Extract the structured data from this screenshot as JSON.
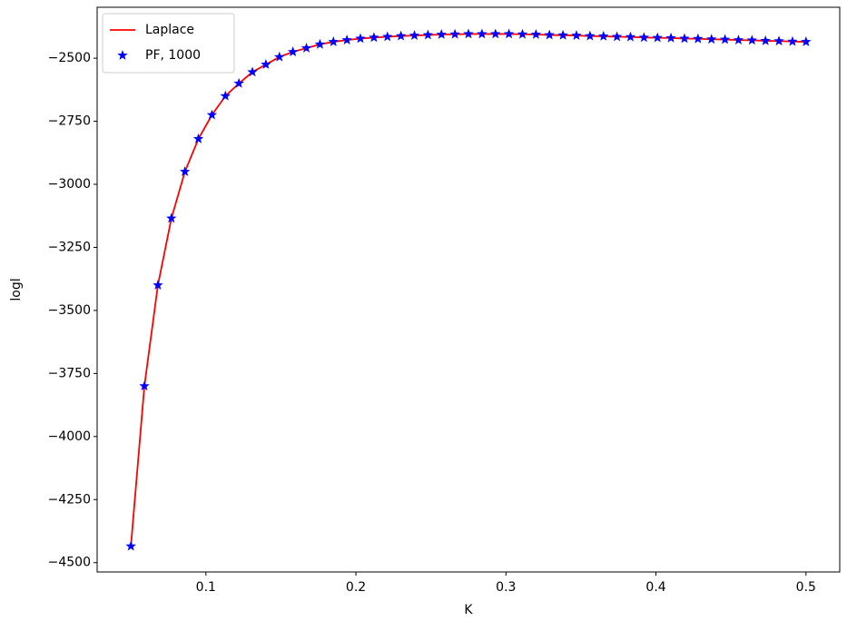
{
  "chart_data": {
    "type": "line",
    "xlabel": "K",
    "ylabel": "logl",
    "x": [
      0.05,
      0.059,
      0.068,
      0.077,
      0.086,
      0.095,
      0.104,
      0.113,
      0.122,
      0.131,
      0.14,
      0.149,
      0.158,
      0.167,
      0.176,
      0.185,
      0.194,
      0.203,
      0.212,
      0.221,
      0.23,
      0.239,
      0.248,
      0.257,
      0.266,
      0.275,
      0.284,
      0.293,
      0.302,
      0.311,
      0.32,
      0.329,
      0.338,
      0.347,
      0.356,
      0.365,
      0.374,
      0.383,
      0.392,
      0.401,
      0.41,
      0.419,
      0.428,
      0.437,
      0.446,
      0.455,
      0.464,
      0.473,
      0.482,
      0.491,
      0.5
    ],
    "series": [
      {
        "name": "Laplace",
        "color": "#ff0000",
        "style": "line",
        "values": [
          -4435,
          -3800,
          -3400,
          -3135,
          -2950,
          -2820,
          -2725,
          -2650,
          -2600,
          -2555,
          -2525,
          -2495,
          -2475,
          -2460,
          -2445,
          -2435,
          -2428,
          -2422,
          -2418,
          -2415,
          -2412,
          -2410,
          -2408,
          -2406,
          -2405,
          -2404,
          -2404,
          -2404,
          -2404,
          -2405,
          -2406,
          -2408,
          -2409,
          -2410,
          -2412,
          -2413,
          -2415,
          -2416,
          -2418,
          -2419,
          -2420,
          -2422,
          -2423,
          -2425,
          -2426,
          -2428,
          -2429,
          -2431,
          -2432,
          -2434,
          -2435
        ]
      },
      {
        "name": "PF, 1000",
        "color": "#0000ff",
        "style": "star",
        "values": [
          -4435,
          -3800,
          -3400,
          -3135,
          -2950,
          -2820,
          -2725,
          -2650,
          -2600,
          -2555,
          -2525,
          -2495,
          -2475,
          -2460,
          -2445,
          -2435,
          -2428,
          -2422,
          -2418,
          -2415,
          -2412,
          -2410,
          -2408,
          -2406,
          -2405,
          -2404,
          -2404,
          -2404,
          -2404,
          -2405,
          -2406,
          -2408,
          -2409,
          -2410,
          -2412,
          -2413,
          -2415,
          -2416,
          -2418,
          -2419,
          -2420,
          -2422,
          -2423,
          -2425,
          -2426,
          -2428,
          -2429,
          -2431,
          -2432,
          -2434,
          -2435
        ]
      }
    ],
    "xlim": [
      0.0275,
      0.5225
    ],
    "xticks": [
      0.1,
      0.2,
      0.3,
      0.4,
      0.5
    ],
    "ylim": [
      -4537,
      -2298
    ],
    "yticks": [
      {
        "value": -4500,
        "label": "−4500"
      },
      {
        "value": -4250,
        "label": "−4250"
      },
      {
        "value": -4000,
        "label": "−4000"
      },
      {
        "value": -3750,
        "label": "−3750"
      },
      {
        "value": -3500,
        "label": "−3500"
      },
      {
        "value": -3250,
        "label": "−3250"
      },
      {
        "value": -3000,
        "label": "−3000"
      },
      {
        "value": -2750,
        "label": "−2750"
      },
      {
        "value": -2500,
        "label": "−2500"
      }
    ],
    "legend": "upper left"
  }
}
